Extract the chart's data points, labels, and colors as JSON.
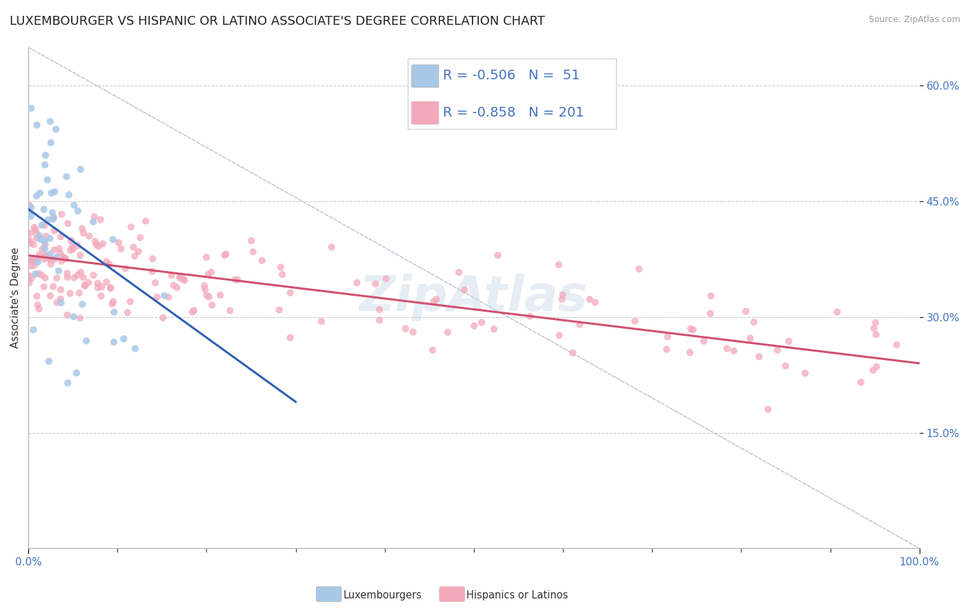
{
  "title": "LUXEMBOURGER VS HISPANIC OR LATINO ASSOCIATE'S DEGREE CORRELATION CHART",
  "source_text": "Source: ZipAtlas.com",
  "ylabel": "Associate's Degree",
  "xlim": [
    0.0,
    1.0
  ],
  "ylim": [
    0.0,
    0.65
  ],
  "x_tick_labels": [
    "0.0%",
    "100.0%"
  ],
  "y_ticks": [
    0.15,
    0.3,
    0.45,
    0.6
  ],
  "y_tick_labels": [
    "15.0%",
    "30.0%",
    "45.0%",
    "60.0%"
  ],
  "blue_color": "#a8c8e8",
  "pink_color": "#f4a8bc",
  "blue_line_color": "#3060b0",
  "pink_line_color": "#d05070",
  "diag_line_color": "#b0b8c8",
  "legend_R_blue": "-0.506",
  "legend_N_blue": "51",
  "legend_R_pink": "-0.858",
  "legend_N_pink": "201",
  "label_blue": "Luxembourgers",
  "label_pink": "Hispanics or Latinos",
  "text_color": "#4472c4",
  "watermark": "ZipAtlas",
  "background_color": "#ffffff",
  "grid_color": "#c8ccd4",
  "title_fontsize": 13,
  "axis_label_fontsize": 11,
  "tick_fontsize": 11,
  "legend_fontsize": 14,
  "blue_line_x0": 0.0,
  "blue_line_y0": 0.44,
  "blue_line_x1": 0.3,
  "blue_line_y1": 0.19,
  "pink_line_x0": 0.0,
  "pink_line_y0": 0.38,
  "pink_line_x1": 1.0,
  "pink_line_y1": 0.24
}
